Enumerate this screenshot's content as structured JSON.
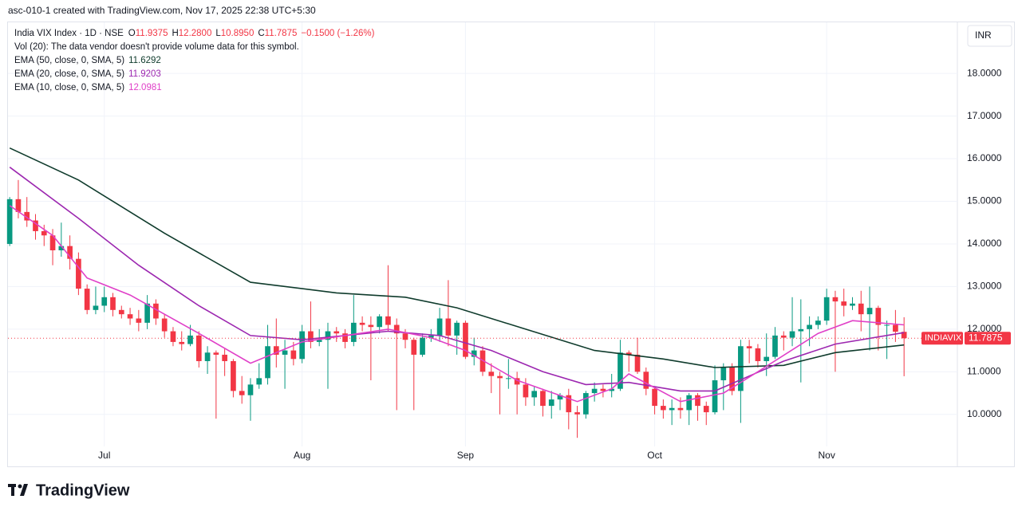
{
  "header": "asc-010-1 created with TradingView.com, Nov 17, 2025 22:38 UTC+5:30",
  "brand": "TradingView",
  "chart_data": {
    "type": "candlestick",
    "symbol_line": "India VIX Index · 1D · NSE",
    "ohlc_legend": [
      {
        "label": "O",
        "value": "11.9375"
      },
      {
        "label": "H",
        "value": "12.2800"
      },
      {
        "label": "L",
        "value": "10.8950"
      },
      {
        "label": "C",
        "value": "11.7875"
      }
    ],
    "change": "−0.1500 (−1.26%)",
    "volume_note": "Vol (20): The data vendor doesn't provide volume data for this symbol.",
    "currency": "INR",
    "ticker": "INDIAVIX",
    "last_price_label": "11.7875",
    "up_color": "#089981",
    "down_color": "#f23645",
    "xlim": [
      -0.2,
      110.2
    ],
    "xticks": [
      {
        "value": 11,
        "label": "Jul"
      },
      {
        "value": 34,
        "label": "Aug"
      },
      {
        "value": 53,
        "label": "Sep"
      },
      {
        "value": 75,
        "label": "Oct"
      },
      {
        "value": 95,
        "label": "Nov"
      }
    ],
    "ylim": [
      8.78,
      19.2
    ],
    "yticks": [
      {
        "value": 10,
        "label": "10.0000"
      },
      {
        "value": 11,
        "label": "11.0000"
      },
      {
        "value": 12,
        "label": "12.0000"
      },
      {
        "value": 13,
        "label": "13.0000"
      },
      {
        "value": 14,
        "label": "14.0000"
      },
      {
        "value": 15,
        "label": "15.0000"
      },
      {
        "value": 16,
        "label": "16.0000"
      },
      {
        "value": 17,
        "label": "17.0000"
      },
      {
        "value": 18,
        "label": "18.0000"
      }
    ],
    "open": [
      14.0,
      15.05,
      14.75,
      14.55,
      14.3,
      14.2,
      13.85,
      13.95,
      13.65,
      12.95,
      12.45,
      12.55,
      12.75,
      12.45,
      12.35,
      12.25,
      12.15,
      12.6,
      12.25,
      11.95,
      11.7,
      11.65,
      11.85,
      11.25,
      11.45,
      11.4,
      11.25,
      10.55,
      10.45,
      10.7,
      10.85,
      11.6,
      11.4,
      11.5,
      11.3,
      11.95,
      11.7,
      11.75,
      11.95,
      11.9,
      11.7,
      12.15,
      12.1,
      12.05,
      12.3,
      12.1,
      11.9,
      11.75,
      11.4,
      11.8,
      11.85,
      12.25,
      11.85,
      12.15,
      11.35,
      11.5,
      11.0,
      10.9,
      10.85,
      10.85,
      10.7,
      10.4,
      10.55,
      10.2,
      10.35,
      10.45,
      10.05,
      10.0,
      10.5,
      10.6,
      10.55,
      10.6,
      11.45,
      11.4,
      11.0,
      10.6,
      10.2,
      10.1,
      10.15,
      10.1,
      10.45,
      10.2,
      10.05,
      10.8,
      11.1,
      10.55,
      11.6,
      11.55,
      11.25,
      11.35,
      11.85,
      11.8,
      11.95,
      12.0,
      12.1,
      12.2,
      12.75,
      12.65,
      12.55,
      12.6,
      12.35,
      12.5,
      12.1,
      12.1,
      11.9375
    ],
    "high": [
      15.1,
      15.5,
      15.1,
      14.7,
      14.45,
      14.35,
      14.5,
      14.2,
      13.8,
      13.05,
      13.0,
      13.0,
      12.85,
      12.55,
      12.5,
      12.45,
      12.8,
      12.7,
      12.35,
      12.05,
      11.95,
      12.1,
      11.95,
      11.6,
      11.5,
      11.55,
      11.3,
      10.9,
      10.85,
      11.2,
      12.1,
      12.25,
      11.75,
      11.7,
      12.1,
      12.65,
      12.0,
      12.15,
      12.05,
      12.0,
      12.8,
      12.3,
      12.3,
      12.35,
      13.5,
      12.25,
      12.0,
      11.8,
      11.9,
      12.0,
      12.5,
      13.15,
      12.2,
      12.2,
      11.8,
      11.6,
      11.2,
      11.0,
      11.3,
      11.0,
      10.85,
      10.65,
      10.6,
      10.55,
      10.5,
      10.6,
      10.2,
      10.55,
      10.75,
      10.7,
      10.95,
      11.75,
      11.5,
      11.8,
      11.1,
      10.65,
      10.35,
      10.35,
      10.4,
      10.5,
      10.5,
      10.3,
      11.15,
      11.2,
      11.2,
      11.75,
      11.75,
      11.65,
      11.9,
      12.05,
      11.95,
      12.75,
      12.7,
      12.3,
      12.3,
      12.95,
      12.9,
      12.95,
      12.75,
      12.9,
      13.0,
      12.55,
      12.2,
      12.45,
      12.28
    ],
    "low": [
      13.95,
      14.6,
      14.4,
      14.1,
      13.95,
      13.5,
      13.7,
      13.4,
      12.8,
      12.35,
      12.35,
      12.4,
      12.3,
      12.25,
      12.1,
      11.95,
      12.0,
      12.1,
      11.8,
      11.6,
      11.5,
      11.6,
      11.1,
      10.95,
      9.9,
      10.9,
      10.4,
      10.25,
      9.85,
      10.6,
      10.7,
      11.1,
      10.6,
      11.15,
      11.2,
      11.55,
      11.6,
      10.6,
      11.7,
      11.55,
      11.6,
      11.95,
      10.8,
      11.9,
      11.95,
      10.1,
      11.55,
      10.1,
      11.35,
      11.7,
      11.7,
      11.6,
      11.4,
      11.3,
      11.15,
      10.9,
      10.5,
      10.0,
      10.6,
      10.0,
      10.2,
      10.2,
      9.95,
      9.9,
      10.1,
      9.65,
      9.45,
      9.9,
      10.3,
      10.4,
      10.4,
      10.55,
      11.0,
      10.95,
      10.45,
      10.0,
      9.9,
      9.75,
      9.9,
      9.75,
      9.85,
      9.75,
      10.0,
      10.1,
      10.45,
      9.8,
      11.2,
      11.1,
      10.9,
      11.3,
      11.5,
      11.6,
      10.75,
      11.6,
      12.0,
      12.1,
      11.0,
      12.3,
      12.45,
      11.95,
      11.5,
      11.5,
      11.3,
      11.7,
      10.895
    ],
    "close": [
      15.05,
      14.75,
      14.55,
      14.3,
      14.2,
      13.85,
      13.95,
      13.65,
      12.95,
      12.45,
      12.55,
      12.75,
      12.45,
      12.35,
      12.25,
      12.15,
      12.6,
      12.25,
      11.95,
      11.7,
      11.65,
      11.85,
      11.25,
      11.45,
      11.4,
      11.25,
      10.55,
      10.45,
      10.7,
      10.85,
      11.6,
      11.4,
      11.5,
      11.3,
      11.95,
      11.7,
      11.75,
      11.95,
      11.9,
      11.7,
      12.15,
      12.1,
      12.05,
      12.3,
      12.1,
      11.9,
      11.75,
      11.4,
      11.8,
      11.85,
      12.25,
      11.85,
      12.15,
      11.35,
      11.5,
      11.0,
      10.9,
      10.85,
      10.85,
      10.7,
      10.4,
      10.55,
      10.2,
      10.35,
      10.45,
      10.05,
      10.0,
      10.5,
      10.6,
      10.55,
      10.6,
      11.45,
      11.4,
      11.0,
      10.6,
      10.2,
      10.1,
      10.15,
      10.1,
      10.45,
      10.2,
      10.05,
      10.8,
      11.1,
      10.55,
      11.6,
      11.55,
      11.25,
      11.35,
      11.85,
      11.8,
      11.95,
      12.0,
      12.1,
      12.2,
      12.75,
      12.65,
      12.55,
      12.6,
      12.35,
      12.5,
      12.1,
      12.1,
      11.94,
      11.7875
    ],
    "series": [
      {
        "name": "EMA (50, close, 0, SMA, 5)",
        "legend_value": 11.6292,
        "color": "#0f3b2c",
        "x": [
          0,
          8,
          18,
          28,
          38,
          46,
          52,
          60,
          68,
          76,
          82,
          90,
          96,
          104
        ],
        "values": [
          16.25,
          15.5,
          14.25,
          13.1,
          12.85,
          12.75,
          12.5,
          12.0,
          11.5,
          11.3,
          11.1,
          11.15,
          11.45,
          11.63
        ]
      },
      {
        "name": "EMA (20, close, 0, SMA, 5)",
        "legend_value": 11.9203,
        "color": "#9c27b0",
        "x": [
          0,
          8,
          15,
          22,
          28,
          34,
          44,
          50,
          56,
          62,
          67,
          72,
          78,
          82,
          86,
          90,
          96,
          104
        ],
        "values": [
          15.8,
          14.6,
          13.5,
          12.55,
          11.85,
          11.75,
          11.95,
          11.85,
          11.5,
          11.0,
          10.7,
          10.75,
          10.55,
          10.55,
          10.9,
          11.25,
          11.65,
          11.92
        ]
      },
      {
        "name": "EMA (10, close, 0, SMA, 5)",
        "legend_value": 12.0981,
        "color": "#e040c8",
        "x": [
          0,
          5,
          9,
          14,
          22,
          28,
          34,
          44,
          49,
          53,
          59,
          66,
          70,
          72,
          78,
          83,
          87,
          94,
          98,
          104
        ],
        "values": [
          14.9,
          14.2,
          13.2,
          12.8,
          11.9,
          11.2,
          11.7,
          12.0,
          11.8,
          11.5,
          10.8,
          10.3,
          10.6,
          10.95,
          10.3,
          10.5,
          11.0,
          11.9,
          12.2,
          12.1
        ]
      }
    ]
  }
}
